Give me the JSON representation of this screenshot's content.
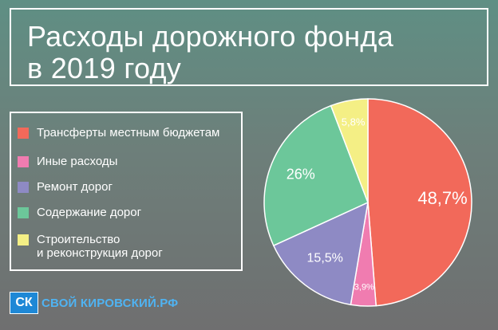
{
  "title_lines": [
    "Расходы дорожного фонда",
    "в 2019 году"
  ],
  "chart_data": {
    "type": "pie",
    "title": "Расходы дорожного фонда в 2019 году",
    "unit": "%",
    "slices": [
      {
        "name": "Трансферты местным бюджетам",
        "value": 48.7,
        "label": "48,7%",
        "color": "#f2695a"
      },
      {
        "name": "Иные расходы",
        "value": 3.9,
        "label": "3,9%",
        "color": "#f07cb0"
      },
      {
        "name": "Ремонт дорог",
        "value": 15.5,
        "label": "15,5%",
        "color": "#8e8ac4"
      },
      {
        "name": "Содержание дорог",
        "value": 26,
        "label": "26%",
        "color": "#6cc79a"
      },
      {
        "name": "Строительство\nи реконструкция дорог",
        "value": 5.8,
        "label": "5,8%",
        "color": "#f4ef85"
      }
    ],
    "legend_position": "left"
  },
  "legend": [
    {
      "label": "Трансферты местным бюджетам",
      "color": "#f2695a"
    },
    {
      "label": "Иные расходы",
      "color": "#f07cb0"
    },
    {
      "label": "Ремонт дорог",
      "color": "#8e8ac4"
    },
    {
      "label": "Содержание дорог",
      "color": "#6cc79a"
    },
    {
      "label": "Строительство\nи реконструкция дорог",
      "color": "#f4ef85"
    }
  ],
  "logo": {
    "badge": "СК",
    "text": "СВОЙ КИРОВСКИЙ.РФ"
  }
}
